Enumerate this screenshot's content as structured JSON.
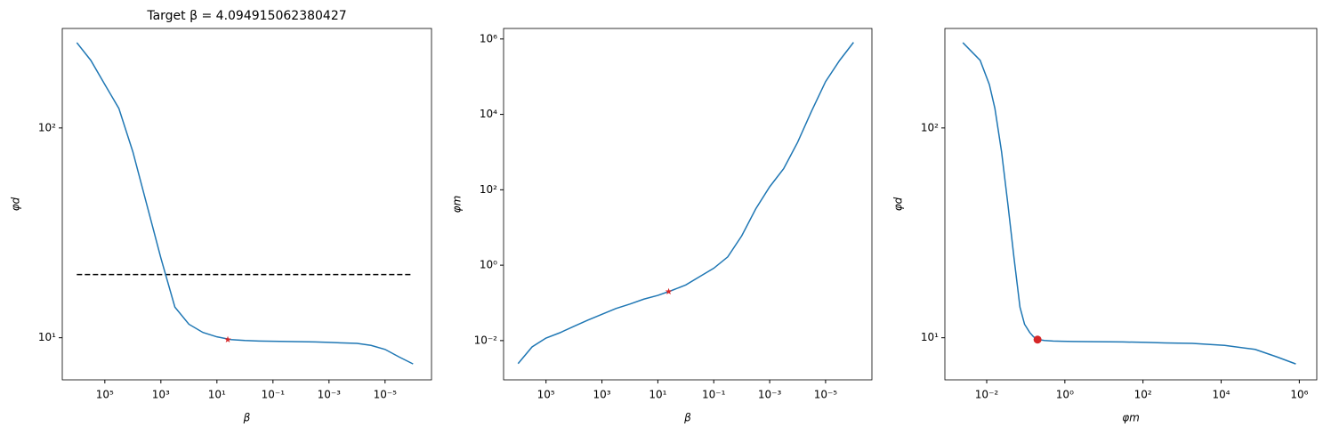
{
  "chart_data": [
    {
      "type": "line",
      "title": "Target β = 4.094915062380427",
      "x_label": "β",
      "y_label": "φd",
      "x": [
        1000000,
        316228,
        100000,
        31623,
        10000,
        3162,
        1000,
        316,
        100,
        31.6,
        10,
        3.16,
        1,
        0.316,
        0.1,
        0.0316,
        0.01,
        0.00316,
        0.001,
        0.000316,
        0.0001,
        3.16e-05,
        1e-05,
        3.16e-06,
        1e-06
      ],
      "values": [
        255,
        210,
        161,
        124,
        77,
        43,
        24,
        14,
        11.6,
        10.6,
        10.1,
        9.8,
        9.7,
        9.65,
        9.62,
        9.6,
        9.58,
        9.55,
        9.5,
        9.45,
        9.4,
        9.2,
        8.8,
        8.1,
        7.5
      ],
      "color": "#1f77b4",
      "x_scale": "log",
      "y_scale": "log",
      "xlim": [
        3300000,
        2.2e-07
      ],
      "ylim": [
        6.3,
        298
      ],
      "xticks": [
        {
          "value": 100000,
          "label": "10⁵"
        },
        {
          "value": 1000,
          "label": "10³"
        },
        {
          "value": 10,
          "label": "10¹"
        },
        {
          "value": 0.1,
          "label": "10⁻¹"
        },
        {
          "value": 0.001,
          "label": "10⁻³"
        },
        {
          "value": 1e-05,
          "label": "10⁻⁵"
        }
      ],
      "yticks": [
        {
          "value": 10,
          "label": "10¹"
        },
        {
          "value": 100,
          "label": "10²"
        }
      ],
      "hlines": [
        {
          "y": 20,
          "color": "#000000",
          "style": "dashed"
        }
      ],
      "markers": [
        {
          "x": 4.094915062380427,
          "y": 9.8,
          "shape": "star",
          "color": "#d62728"
        }
      ]
    },
    {
      "type": "line",
      "x_label": "β",
      "y_label": "φm",
      "x": [
        1000000,
        316228,
        100000,
        31623,
        10000,
        3162,
        1000,
        316,
        100,
        31.6,
        10,
        3.16,
        1,
        0.316,
        0.1,
        0.0316,
        0.01,
        0.00316,
        0.001,
        0.000316,
        0.0001,
        3.16e-05,
        1e-05,
        3.16e-06,
        1e-06
      ],
      "values": [
        0.00245,
        0.0068,
        0.0117,
        0.0162,
        0.024,
        0.035,
        0.05,
        0.071,
        0.093,
        0.126,
        0.158,
        0.214,
        0.3,
        0.5,
        0.83,
        1.66,
        6,
        31,
        120,
        363,
        1820,
        12300,
        74000,
        269000,
        813000
      ],
      "color": "#1f77b4",
      "x_scale": "log",
      "y_scale": "log",
      "xlim": [
        3300000,
        2.2e-07
      ],
      "ylim": [
        0.00091,
        1900000
      ],
      "xticks": [
        {
          "value": 100000,
          "label": "10⁵"
        },
        {
          "value": 1000,
          "label": "10³"
        },
        {
          "value": 10,
          "label": "10¹"
        },
        {
          "value": 0.1,
          "label": "10⁻¹"
        },
        {
          "value": 0.001,
          "label": "10⁻³"
        },
        {
          "value": 1e-05,
          "label": "10⁻⁵"
        }
      ],
      "yticks": [
        {
          "value": 0.01,
          "label": "10⁻²"
        },
        {
          "value": 1,
          "label": "10⁰"
        },
        {
          "value": 100,
          "label": "10²"
        },
        {
          "value": 10000,
          "label": "10⁴"
        },
        {
          "value": 1000000,
          "label": "10⁶"
        }
      ],
      "markers": [
        {
          "x": 4.094915062380427,
          "y": 0.2,
          "shape": "star",
          "color": "#d62728"
        }
      ]
    },
    {
      "type": "line",
      "x_label": "φm",
      "y_label": "φd",
      "x": [
        0.00245,
        0.0068,
        0.0117,
        0.0162,
        0.024,
        0.035,
        0.05,
        0.071,
        0.093,
        0.126,
        0.158,
        0.214,
        0.3,
        0.5,
        0.83,
        1.66,
        6,
        31,
        120,
        363,
        1820,
        12300,
        74000,
        269000,
        813000
      ],
      "values": [
        255,
        210,
        161,
        124,
        77,
        43,
        24,
        14,
        11.6,
        10.6,
        10.1,
        9.8,
        9.7,
        9.65,
        9.62,
        9.6,
        9.58,
        9.55,
        9.5,
        9.45,
        9.4,
        9.2,
        8.8,
        8.1,
        7.5
      ],
      "color": "#1f77b4",
      "x_scale": "log",
      "y_scale": "log",
      "xlim": [
        0.00085,
        2800000
      ],
      "ylim": [
        6.3,
        298
      ],
      "xticks": [
        {
          "value": 0.01,
          "label": "10⁻²"
        },
        {
          "value": 1,
          "label": "10⁰"
        },
        {
          "value": 100,
          "label": "10²"
        },
        {
          "value": 10000,
          "label": "10⁴"
        },
        {
          "value": 1000000,
          "label": "10⁶"
        }
      ],
      "yticks": [
        {
          "value": 10,
          "label": "10¹"
        },
        {
          "value": 100,
          "label": "10²"
        }
      ],
      "markers": [
        {
          "x": 0.2,
          "y": 9.8,
          "shape": "circle",
          "color": "#d62728"
        }
      ]
    }
  ]
}
